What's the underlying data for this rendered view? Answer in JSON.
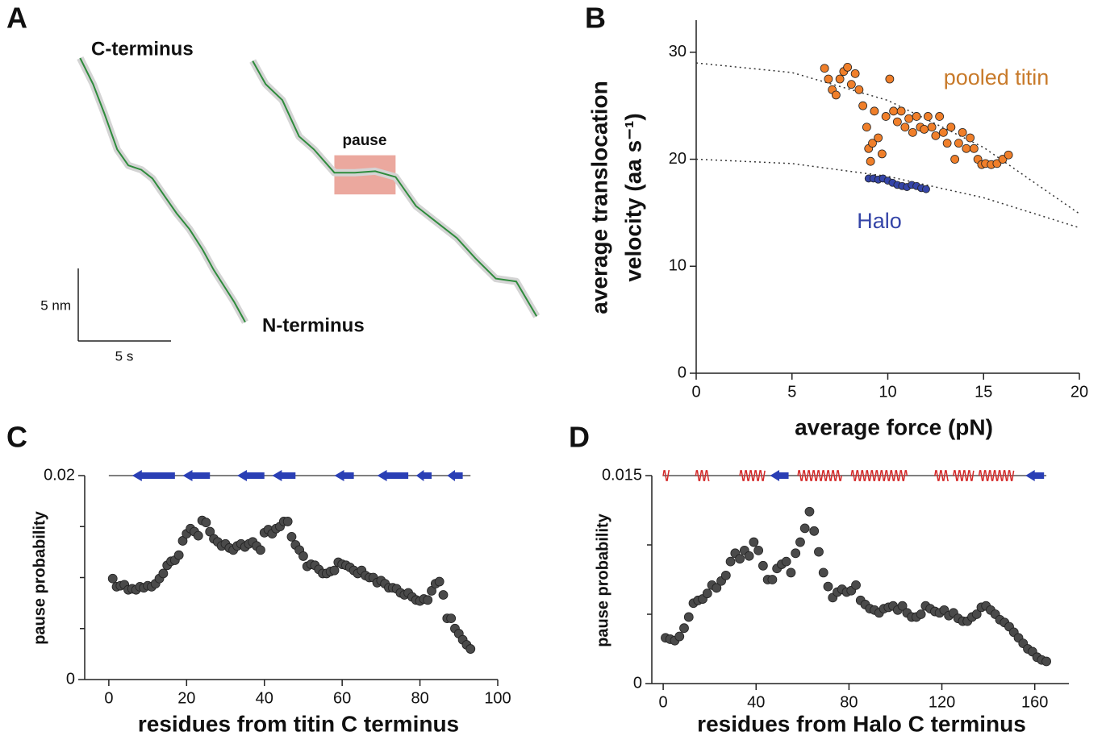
{
  "chart_data": [
    {
      "type": "line",
      "panel": "A",
      "xlim": [
        0,
        25.3
      ],
      "ylim": [
        0,
        20.7
      ],
      "series": [
        {
          "color": "#2e8b3c",
          "x": [
            0.1,
            0.8,
            1.4,
            2.1,
            2.7,
            3.4,
            4.0,
            4.7,
            5.3,
            6.0,
            6.7,
            7.3,
            8.0,
            8.4,
            9.0
          ],
          "values": [
            19.5,
            17.7,
            15.7,
            13.2,
            12.1,
            11.8,
            11.2,
            9.9,
            8.8,
            7.7,
            6.3,
            4.9,
            3.5,
            2.7,
            1.3
          ]
        },
        {
          "color": "#2e8b3c",
          "x": [
            9.4,
            10.1,
            11.0,
            11.9,
            12.7,
            13.8,
            14.9,
            16.0,
            17.1,
            18.2,
            19.3,
            20.4,
            21.4,
            22.5,
            23.6,
            24.7
          ],
          "values": [
            19.3,
            17.7,
            16.6,
            14.1,
            13.2,
            11.6,
            11.6,
            11.7,
            11.3,
            9.3,
            8.2,
            7.1,
            5.7,
            4.3,
            4.1,
            1.7
          ]
        }
      ],
      "annotations": [
        "C-terminus",
        "N-terminus"
      ],
      "pause": {
        "label": "pause",
        "x": [
          13.8,
          17.1
        ],
        "y": [
          10.1,
          12.8
        ],
        "color": "#e07a6a"
      },
      "scale_bars": {
        "x": {
          "value": 5,
          "label": "5 s"
        },
        "y": {
          "value": 5,
          "label": "5 nm"
        }
      }
    },
    {
      "type": "scatter",
      "panel": "B",
      "xlabel": "average force (pN)",
      "ylabel": [
        "average translocation",
        "velocity (aa s⁻¹)"
      ],
      "xlim": [
        0,
        20
      ],
      "ylim": [
        0,
        33
      ],
      "xticks": [
        0,
        5,
        10,
        15,
        20
      ],
      "yticks": [
        0,
        10,
        20,
        30
      ],
      "series": [
        {
          "name": "pooled titin",
          "color": "#f07f2a",
          "x": [
            6.7,
            6.9,
            7.1,
            7.3,
            7.5,
            7.7,
            7.9,
            8.1,
            8.3,
            8.5,
            8.7,
            8.9,
            9.0,
            9.1,
            9.2,
            9.3,
            9.5,
            9.7,
            9.9,
            10.1,
            10.3,
            10.5,
            10.7,
            10.9,
            11.1,
            11.3,
            11.5,
            11.7,
            11.9,
            12.1,
            12.3,
            12.5,
            12.7,
            12.9,
            13.1,
            13.3,
            13.5,
            13.7,
            13.9,
            14.1,
            14.3,
            14.5,
            14.7,
            14.9,
            15.1,
            15.4,
            15.7,
            16.0,
            16.3
          ],
          "values": [
            28.5,
            27.5,
            26.5,
            26.0,
            27.5,
            28.2,
            28.6,
            27.0,
            28.0,
            26.5,
            25.0,
            23.0,
            21.0,
            19.8,
            21.5,
            24.5,
            22.0,
            20.5,
            24.0,
            27.5,
            24.5,
            23.5,
            24.5,
            23.0,
            23.8,
            22.5,
            24.0,
            23.0,
            22.8,
            24.0,
            23.0,
            22.2,
            24.0,
            22.5,
            21.5,
            23.0,
            20.0,
            21.5,
            22.5,
            21.0,
            22.0,
            21.0,
            20.0,
            19.5,
            19.6,
            19.5,
            19.6,
            20.0,
            20.4
          ]
        },
        {
          "name": "Halo",
          "color": "#3545a8",
          "x": [
            9.0,
            9.25,
            9.5,
            9.75,
            10.0,
            10.25,
            10.5,
            10.75,
            11.0,
            11.25,
            11.5,
            11.75,
            12.0
          ],
          "values": [
            18.2,
            18.2,
            18.1,
            18.2,
            18.0,
            17.8,
            17.6,
            17.5,
            17.4,
            17.6,
            17.5,
            17.3,
            17.2
          ]
        }
      ],
      "fits": [
        {
          "x": [
            0,
            5,
            10,
            15,
            20
          ],
          "values": [
            29.0,
            28.1,
            25.5,
            21.1,
            14.9
          ]
        },
        {
          "x": [
            0,
            5,
            10,
            15,
            20
          ],
          "values": [
            20.0,
            19.6,
            18.4,
            16.4,
            13.6
          ]
        }
      ]
    },
    {
      "type": "scatter",
      "panel": "C",
      "xlabel": "residues from titin C terminus",
      "ylabel": "pause probability",
      "xlim": [
        -6.2,
        100
      ],
      "ylim": [
        0,
        0.02
      ],
      "xticks": [
        0,
        20,
        40,
        60,
        80,
        100
      ],
      "yticks": [
        0,
        0.02
      ],
      "minor_yticks": [
        0.005,
        0.01,
        0.015
      ],
      "series": [
        {
          "color": "#4a4a4a",
          "x": [
            1,
            2,
            3,
            4,
            5,
            6,
            7,
            8,
            9,
            10,
            11,
            12,
            13,
            14,
            15,
            16,
            17,
            18,
            19,
            20,
            21,
            22,
            23,
            24,
            25,
            26,
            27,
            28,
            29,
            30,
            31,
            32,
            33,
            34,
            35,
            36,
            37,
            38,
            39,
            40,
            41,
            42,
            43,
            44,
            45,
            46,
            47,
            48,
            49,
            50,
            51,
            52,
            53,
            54,
            55,
            56,
            57,
            58,
            59,
            60,
            61,
            62,
            63,
            64,
            65,
            66,
            67,
            68,
            69,
            70,
            71,
            72,
            73,
            74,
            75,
            76,
            77,
            78,
            79,
            80,
            81,
            82,
            83,
            84,
            85,
            86,
            87,
            88,
            89,
            90,
            91,
            92,
            93
          ],
          "values": [
            0.0099,
            0.0091,
            0.0092,
            0.0093,
            0.0088,
            0.0089,
            0.0088,
            0.0091,
            0.009,
            0.0092,
            0.0091,
            0.0094,
            0.0099,
            0.0104,
            0.0112,
            0.0116,
            0.0117,
            0.0122,
            0.0136,
            0.0143,
            0.0148,
            0.0145,
            0.0141,
            0.0156,
            0.0154,
            0.0145,
            0.0138,
            0.0135,
            0.0131,
            0.0133,
            0.0129,
            0.0127,
            0.0131,
            0.0133,
            0.013,
            0.0133,
            0.0135,
            0.0131,
            0.0127,
            0.0144,
            0.0147,
            0.0143,
            0.0148,
            0.015,
            0.0155,
            0.0155,
            0.014,
            0.0132,
            0.0127,
            0.0121,
            0.0111,
            0.0113,
            0.0112,
            0.0108,
            0.0104,
            0.0104,
            0.0106,
            0.0107,
            0.0115,
            0.0113,
            0.0112,
            0.011,
            0.0107,
            0.0104,
            0.0107,
            0.0102,
            0.01,
            0.01,
            0.0095,
            0.0097,
            0.0094,
            0.009,
            0.009,
            0.0089,
            0.0085,
            0.0083,
            0.0085,
            0.0081,
            0.0078,
            0.0077,
            0.0079,
            0.0078,
            0.0087,
            0.0094,
            0.0096,
            0.0083,
            0.006,
            0.006,
            0.005,
            0.0045,
            0.0039,
            0.0034,
            0.003
          ]
        }
      ],
      "structure": {
        "helices": [],
        "strands": [
          [
            6,
            17
          ],
          [
            19,
            26
          ],
          [
            33,
            40
          ],
          [
            42,
            48
          ],
          [
            58,
            63
          ],
          [
            69,
            77
          ],
          [
            79,
            83
          ],
          [
            87,
            91
          ]
        ]
      }
    },
    {
      "type": "scatter",
      "panel": "D",
      "xlabel": "residues from Halo C terminus",
      "ylabel": "pause probability",
      "xlim": [
        -4.9,
        174.7
      ],
      "ylim": [
        0,
        0.015
      ],
      "xticks": [
        0,
        40,
        80,
        120,
        160
      ],
      "yticks": [
        0,
        0.015
      ],
      "minor_yticks": [
        0.005,
        0.01
      ],
      "series": [
        {
          "color": "#4a4a4a",
          "x": [
            1,
            3,
            5,
            7,
            9,
            11,
            13,
            15,
            17,
            19,
            21,
            23,
            25,
            27,
            29,
            31,
            33,
            35,
            37,
            39,
            41,
            43,
            45,
            47,
            49,
            51,
            53,
            55,
            57,
            59,
            61,
            63,
            65,
            67,
            69,
            71,
            73,
            75,
            77,
            79,
            81,
            83,
            85,
            87,
            89,
            91,
            93,
            95,
            97,
            99,
            101,
            103,
            105,
            107,
            109,
            111,
            113,
            115,
            117,
            119,
            121,
            123,
            125,
            127,
            129,
            131,
            133,
            135,
            137,
            139,
            141,
            143,
            145,
            147,
            149,
            151,
            153,
            155,
            157,
            159,
            161,
            163,
            165
          ],
          "values": [
            0.0033,
            0.0032,
            0.0031,
            0.0034,
            0.004,
            0.0048,
            0.0058,
            0.006,
            0.0061,
            0.0065,
            0.0071,
            0.0069,
            0.0074,
            0.0078,
            0.0088,
            0.0094,
            0.009,
            0.0096,
            0.0092,
            0.0102,
            0.0096,
            0.0085,
            0.0075,
            0.0075,
            0.0083,
            0.0086,
            0.0088,
            0.008,
            0.0094,
            0.0102,
            0.0112,
            0.0124,
            0.011,
            0.0095,
            0.008,
            0.007,
            0.0062,
            0.0066,
            0.0068,
            0.0066,
            0.0067,
            0.0071,
            0.006,
            0.0057,
            0.0054,
            0.0053,
            0.0051,
            0.0054,
            0.0055,
            0.0056,
            0.0053,
            0.0056,
            0.0051,
            0.0048,
            0.0048,
            0.005,
            0.0056,
            0.0054,
            0.0052,
            0.0051,
            0.0053,
            0.0049,
            0.0051,
            0.0047,
            0.0045,
            0.0045,
            0.0048,
            0.005,
            0.0055,
            0.0056,
            0.0053,
            0.005,
            0.0046,
            0.0044,
            0.0041,
            0.0037,
            0.0033,
            0.0029,
            0.0025,
            0.0023,
            0.0019,
            0.0017,
            0.0016
          ]
        }
      ],
      "structure": {
        "helices": [
          [
            0,
            3
          ],
          [
            14,
            20
          ],
          [
            33,
            44
          ],
          [
            58,
            77
          ],
          [
            81,
            105
          ],
          [
            117,
            123
          ],
          [
            125,
            134
          ],
          [
            136,
            151
          ]
        ],
        "strands": [
          [
            46,
            54
          ],
          [
            156,
            164
          ]
        ]
      }
    }
  ]
}
